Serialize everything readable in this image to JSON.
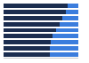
{
  "chart_data": {
    "type": "bar",
    "orientation": "horizontal",
    "stacked": true,
    "categories": [
      null,
      null,
      null,
      null,
      null,
      null,
      null,
      null,
      null
    ],
    "series": [
      {
        "color": "#1b2d4f",
        "values": [
          86,
          83,
          78,
          75,
          70,
          65,
          63,
          62,
          62
        ]
      },
      {
        "color": "#3b7ddd",
        "values": [
          14,
          17,
          22,
          25,
          30,
          35,
          37,
          38,
          38
        ]
      }
    ],
    "xlim": [
      0,
      100
    ],
    "xticks": [],
    "grid": false,
    "tick_labels": false
  }
}
